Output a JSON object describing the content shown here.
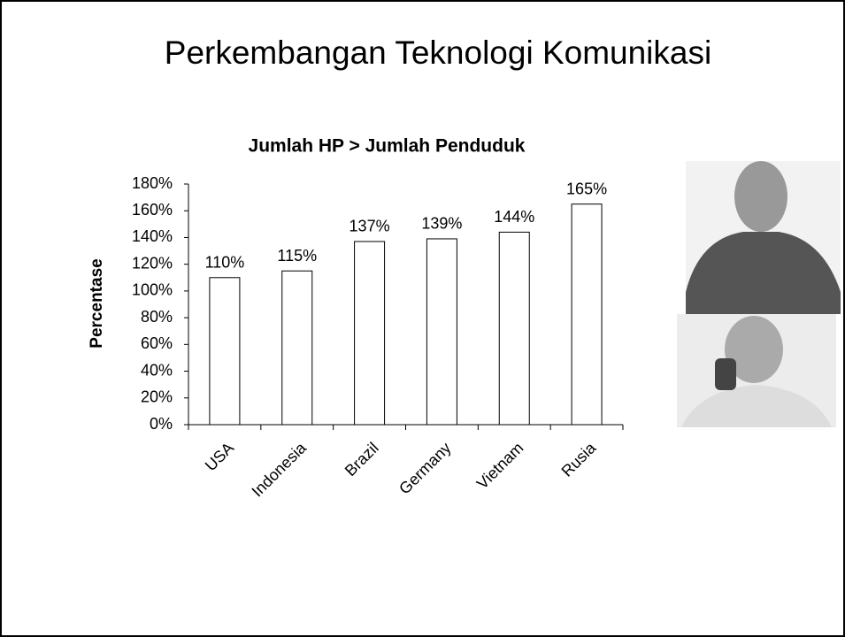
{
  "slide": {
    "title": "Perkembangan Teknologi Komunikasi"
  },
  "chart_data": {
    "type": "bar",
    "title": "Jumlah HP > Jumlah Penduduk",
    "y_label": "Percentase",
    "categories": [
      "USA",
      "Indonesia",
      "Brazil",
      "Germany",
      "Vietnam",
      "Rusia"
    ],
    "values": [
      110,
      115,
      137,
      139,
      144,
      165
    ],
    "value_labels": [
      "110%",
      "115%",
      "137%",
      "139%",
      "144%",
      "165%"
    ],
    "color": "#ffffff",
    "ylim": [
      0,
      180
    ],
    "yticks": [
      {
        "value": 0,
        "label": "0%"
      },
      {
        "value": 20,
        "label": "20%"
      },
      {
        "value": 40,
        "label": "40%"
      },
      {
        "value": 60,
        "label": "60%"
      },
      {
        "value": 80,
        "label": "80%"
      },
      {
        "value": 100,
        "label": "100%"
      },
      {
        "value": 120,
        "label": "120%"
      },
      {
        "value": 140,
        "label": "140%"
      },
      {
        "value": 160,
        "label": "160%"
      },
      {
        "value": 180,
        "label": "180%"
      }
    ],
    "grid": false
  }
}
